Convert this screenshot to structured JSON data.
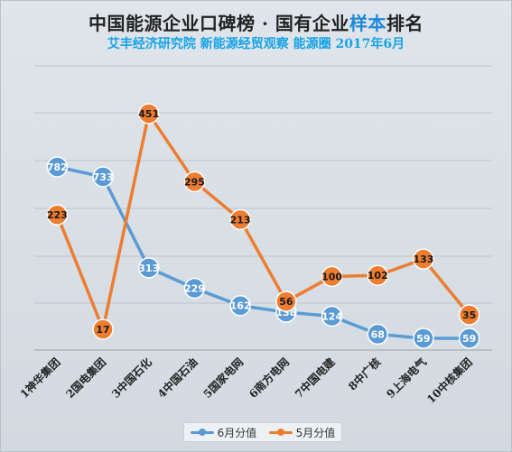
{
  "header": {
    "title_main": "中国能源企业口碑榜 · 国有企业",
    "title_accent": "样本",
    "title_tail": "排名",
    "subtitle": "艾丰经济研究院 新能源经贸观察 能源圈 2017年6月"
  },
  "chart_data": {
    "type": "line",
    "categories": [
      "1神华集团",
      "2国电集团",
      "3中国石化",
      "4中国石油",
      "5国家电网",
      "6南方电网",
      "7中国电建",
      "8中广核",
      "9上海电气",
      "10中核集团"
    ],
    "series": [
      {
        "name": "6月分值",
        "color": "#5b9bd5",
        "values": [
          782,
          733,
          313,
          229,
          162,
          138,
          124,
          68,
          59,
          59
        ]
      },
      {
        "name": "5月分值",
        "color": "#ed7d31",
        "values": [
          223,
          17,
          451,
          295,
          213,
          56,
          100,
          102,
          133,
          35
        ]
      }
    ],
    "grid": true,
    "legend": "bottom"
  }
}
